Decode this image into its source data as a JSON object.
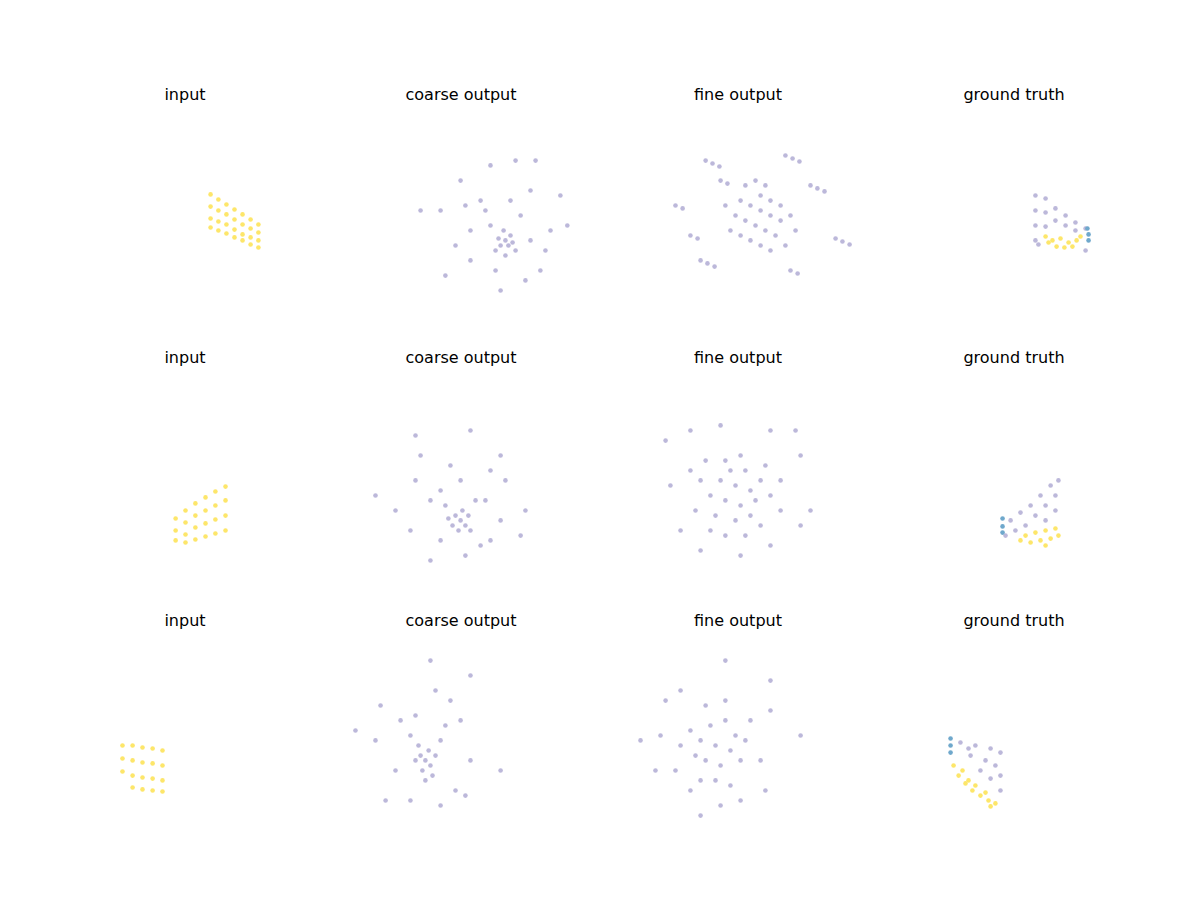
{
  "chart_data": [
    {
      "type": "scatter",
      "title": "input",
      "xlim": [
        0,
        100
      ],
      "ylim": [
        0,
        100
      ],
      "tick_labels": false,
      "series": [
        {
          "color": "#fde66a",
          "x": [
            60.9,
            60.9,
            60.9,
            60.9,
            64.3,
            64.3,
            64.3,
            64.3,
            67.8,
            67.8,
            67.8,
            67.8,
            71.3,
            71.3,
            71.3,
            71.3,
            74.8,
            74.8,
            74.8,
            74.8,
            78.3,
            78.3,
            78.3,
            78.3,
            81.7,
            81.7,
            81.7,
            81.7
          ],
          "values": [
            65.7,
            60.4,
            55.2,
            51.3,
            63.5,
            58.7,
            53.9,
            50.0,
            61.3,
            57.0,
            52.6,
            48.7,
            59.1,
            54.8,
            50.4,
            47.0,
            57.0,
            52.6,
            48.3,
            45.7,
            54.8,
            50.9,
            47.0,
            43.9,
            52.6,
            49.1,
            45.7,
            42.6
          ]
        }
      ]
    },
    {
      "type": "scatter",
      "title": "coarse output",
      "xlim": [
        0,
        100
      ],
      "ylim": [
        0,
        100
      ],
      "tick_labels": false,
      "series": [
        {
          "color": "#bcb8da",
          "x": [
            69.1,
            67.0,
            71.3,
            70.4,
            66.1,
            72.2,
            68.3,
            64.8,
            73.5,
            69.1,
            62.6,
            75.7,
            58.3,
            80.0,
            53.9,
            84.3,
            49.6,
            88.7,
            40.9,
            96.0,
            32.2,
            73.5,
            82.2,
            62.6,
            47.4,
            77.8,
            67.0,
            43.0,
            93.0,
            60.4,
            71.3,
            53.9,
            80.0,
            64.8,
            51.7,
            86.5
          ],
          "values": [
            45.7,
            43.5,
            47.8,
            43.5,
            46.5,
            44.8,
            50.0,
            41.3,
            41.3,
            39.1,
            52.2,
            56.5,
            63.0,
            67.4,
            37.0,
            32.6,
            71.7,
            50.0,
            58.7,
            52.2,
            58.7,
            80.4,
            80.4,
            78.3,
            43.5,
            28.3,
            23.9,
            30.4,
            65.2,
            58.7,
            63.0,
            50.0,
            45.7,
            32.6,
            60.9,
            41.3
          ]
        }
      ]
    },
    {
      "type": "scatter",
      "title": "fine output",
      "xlim": [
        0,
        100
      ],
      "ylim": [
        0,
        100
      ],
      "tick_labels": false,
      "series": [
        {
          "color": "#bcb8da",
          "x": [
            50.9,
            55.2,
            59.6,
            63.9,
            68.3,
            53.0,
            57.4,
            61.7,
            66.1,
            48.7,
            59.6,
            63.9,
            68.3,
            72.6,
            55.2,
            59.6,
            63.9,
            46.5,
            50.9,
            74.8,
            44.3,
            70.4,
            53.0,
            57.4,
            61.7,
            35.7,
            38.7,
            41.7,
            70.4,
            73.5,
            76.5,
            22.6,
            25.7,
            81.3,
            84.3,
            87.4,
            92.2,
            95.2,
            98.3,
            33.5,
            36.5,
            39.6,
            29.1,
            32.2,
            72.6,
            75.7,
            42.2,
            45.2
          ],
          "values": [
            63.0,
            60.9,
            58.7,
            56.5,
            54.3,
            54.3,
            52.2,
            50.0,
            47.8,
            56.5,
            65.2,
            63.0,
            60.9,
            56.5,
            45.7,
            43.5,
            41.3,
            50.0,
            47.8,
            50.0,
            60.9,
            43.5,
            69.6,
            71.7,
            69.6,
            80.4,
            79.1,
            77.8,
            82.6,
            81.3,
            80.0,
            60.9,
            59.6,
            69.6,
            68.3,
            67.0,
            46.5,
            45.2,
            43.9,
            37.0,
            35.7,
            34.3,
            47.8,
            46.5,
            32.6,
            31.3,
            71.7,
            70.4
          ]
        }
      ]
    },
    {
      "type": "scatter",
      "title": "ground truth",
      "xlim": [
        0,
        100
      ],
      "ylim": [
        0,
        100
      ],
      "tick_labels": false,
      "series": [
        {
          "color": "#bcb8da",
          "x": [
            59.1,
            59.1,
            59.1,
            59.1,
            63.5,
            63.5,
            63.5,
            67.8,
            67.8,
            72.2,
            72.2,
            76.5,
            76.5,
            80.9,
            80.9,
            60.4
          ],
          "values": [
            65.2,
            58.7,
            52.2,
            45.7,
            63.9,
            57.8,
            51.7,
            59.6,
            54.3,
            56.5,
            52.2,
            53.5,
            50.0,
            50.9,
            41.3,
            43.9
          ]
        },
        {
          "color": "#fde66a",
          "x": [
            63.5,
            66.5,
            70.0,
            73.5,
            77.0,
            68.3,
            71.7,
            75.2,
            64.8,
            78.7
          ],
          "values": [
            47.4,
            45.7,
            46.5,
            44.8,
            45.7,
            43.0,
            42.6,
            43.0,
            44.8,
            47.4
          ]
        },
        {
          "color": "#6fa8cc",
          "x": [
            81.7,
            82.2,
            82.2
          ],
          "values": [
            50.9,
            48.3,
            45.7
          ]
        }
      ]
    },
    {
      "type": "scatter",
      "title": "input",
      "xlim": [
        0,
        100
      ],
      "ylim": [
        0,
        100
      ],
      "tick_labels": false,
      "series": [
        {
          "color": "#fde66a",
          "x": [
            45.7,
            45.7,
            45.7,
            50.0,
            50.0,
            50.0,
            50.0,
            54.3,
            54.3,
            54.3,
            54.3,
            58.7,
            58.7,
            58.7,
            58.7,
            63.0,
            63.0,
            63.0,
            63.0,
            67.4,
            67.4,
            67.4,
            67.4
          ],
          "values": [
            39.1,
            33.9,
            29.6,
            42.6,
            37.4,
            32.2,
            28.7,
            45.7,
            40.4,
            35.2,
            30.0,
            48.3,
            42.6,
            37.0,
            31.3,
            50.9,
            44.8,
            38.7,
            32.6,
            53.0,
            47.0,
            40.4,
            33.9
          ]
        }
      ]
    },
    {
      "type": "scatter",
      "title": "coarse output",
      "xlim": [
        0,
        100
      ],
      "ylim": [
        0,
        100
      ],
      "tick_labels": false,
      "series": [
        {
          "color": "#bcb8da",
          "x": [
            49.6,
            47.4,
            51.7,
            46.1,
            53.0,
            48.7,
            50.4,
            44.3,
            53.9,
            43.0,
            56.1,
            40.9,
            62.6,
            32.2,
            67.0,
            27.8,
            58.3,
            36.5,
            53.9,
            69.1,
            30.0,
            21.3,
            75.7,
            60.4,
            40.9,
            49.6,
            67.0,
            12.6,
            36.5,
            30.0,
            77.8,
            45.2,
            62.6,
            51.7
          ],
          "values": [
            38.3,
            40.4,
            36.1,
            36.1,
            40.4,
            33.9,
            42.6,
            39.1,
            33.9,
            44.8,
            47.0,
            51.3,
            60.0,
            66.5,
            38.3,
            33.9,
            27.4,
            20.9,
            77.4,
            55.7,
            55.7,
            42.6,
            31.7,
            47.0,
            29.6,
            55.7,
            66.5,
            49.1,
            47.0,
            75.2,
            42.6,
            62.2,
            29.6,
            23.0
          ]
        }
      ]
    },
    {
      "type": "scatter",
      "title": "fine output",
      "xlim": [
        0,
        100
      ],
      "ylim": [
        0,
        100
      ],
      "tick_labels": false,
      "series": [
        {
          "color": "#bcb8da",
          "x": [
            42.2,
            48.7,
            55.2,
            44.3,
            50.9,
            57.4,
            37.8,
            46.5,
            53.0,
            59.6,
            40.0,
            48.7,
            55.2,
            33.5,
            63.9,
            44.3,
            50.9,
            61.7,
            35.7,
            68.3,
            31.3,
            59.6,
            53.0,
            44.3,
            37.8,
            68.3,
            29.1,
            77.0,
            81.3,
            20.4,
            18.3,
            29.1,
            42.2,
            63.9,
            74.8,
            24.8,
            33.5,
            50.9,
            63.9,
            77.0
          ],
          "values": [
            55.7,
            53.5,
            51.3,
            47.0,
            44.8,
            47.0,
            49.1,
            60.0,
            60.0,
            55.7,
            40.4,
            38.3,
            40.4,
            55.7,
            49.1,
            64.3,
            66.5,
            62.2,
            64.3,
            55.7,
            42.6,
            36.1,
            31.7,
            31.7,
            33.9,
            42.6,
            60.0,
            66.5,
            42.6,
            53.5,
            73.0,
            77.4,
            79.6,
            77.4,
            77.4,
            33.9,
            25.2,
            23.0,
            27.4,
            36.1
          ]
        }
      ]
    },
    {
      "type": "scatter",
      "title": "ground truth",
      "xlim": [
        0,
        100
      ],
      "ylim": [
        0,
        100
      ],
      "tick_labels": false,
      "series": [
        {
          "color": "#bcb8da",
          "x": [
            48.3,
            52.6,
            57.0,
            61.3,
            65.7,
            67.8,
            63.5,
            59.1,
            54.8,
            50.4,
            67.8,
            63.5,
            46.1,
            69.1
          ],
          "values": [
            38.3,
            41.7,
            44.8,
            49.1,
            53.5,
            49.1,
            44.8,
            40.4,
            36.1,
            33.9,
            42.6,
            38.3,
            31.7,
            55.7
          ]
        },
        {
          "color": "#fde66a",
          "x": [
            54.8,
            59.1,
            63.5,
            67.8,
            57.0,
            61.3,
            65.7,
            52.6,
            69.1,
            63.5
          ],
          "values": [
            31.7,
            33.0,
            33.9,
            34.8,
            28.7,
            29.6,
            30.4,
            29.6,
            31.7,
            27.4
          ]
        },
        {
          "color": "#6fa8cc",
          "x": [
            44.8,
            44.8,
            44.8
          ],
          "values": [
            39.1,
            35.7,
            33.0
          ]
        }
      ]
    },
    {
      "type": "scatter",
      "title": "input",
      "xlim": [
        0,
        100
      ],
      "ylim": [
        0,
        100
      ],
      "tick_labels": false,
      "series": [
        {
          "color": "#fde66a",
          "x": [
            22.6,
            22.6,
            22.6,
            27.0,
            27.0,
            27.0,
            27.0,
            31.3,
            31.3,
            31.3,
            31.3,
            35.7,
            35.7,
            35.7,
            35.7,
            40.0,
            40.0,
            40.0,
            40.0
          ],
          "values": [
            54.8,
            49.1,
            43.5,
            54.8,
            48.3,
            41.7,
            36.5,
            53.9,
            47.4,
            40.9,
            35.7,
            53.5,
            47.0,
            40.4,
            35.2,
            52.6,
            46.1,
            39.6,
            34.8
          ]
        }
      ]
    },
    {
      "type": "scatter",
      "title": "coarse output",
      "xlim": [
        0,
        100
      ],
      "ylim": [
        0,
        100
      ],
      "tick_labels": false,
      "series": [
        {
          "color": "#bcb8da",
          "x": [
            34.3,
            32.2,
            36.5,
            33.0,
            35.7,
            31.3,
            37.4,
            30.0,
            38.7,
            34.3,
            27.8,
            40.9,
            23.5,
            45.2,
            38.7,
            21.3,
            47.4,
            14.8,
            53.9,
            27.8,
            40.9,
            12.6,
            49.6,
            17.0,
            67.0,
            3.9,
            53.9,
            36.5,
            30.0,
            43.0,
            51.7
          ],
          "values": [
            48.3,
            50.4,
            46.1,
            43.9,
            52.6,
            54.8,
            41.7,
            48.3,
            50.4,
            39.6,
            59.1,
            57.0,
            65.7,
            74.3,
            78.7,
            43.9,
            35.2,
            72.2,
            48.3,
            30.9,
            28.7,
            57.0,
            65.7,
            30.9,
            43.9,
            61.3,
            85.2,
            91.7,
            67.8,
            63.5,
            33.0
          ]
        }
      ]
    },
    {
      "type": "scatter",
      "title": "fine output",
      "xlim": [
        0,
        100
      ],
      "ylim": [
        0,
        100
      ],
      "tick_labels": false,
      "series": [
        {
          "color": "#bcb8da",
          "x": [
            33.5,
            40.0,
            46.5,
            35.7,
            42.2,
            48.7,
            37.8,
            44.3,
            31.3,
            50.9,
            40.0,
            33.5,
            46.5,
            29.1,
            53.0,
            35.7,
            44.3,
            24.8,
            55.2,
            59.6,
            29.1,
            42.2,
            50.9,
            22.6,
            16.1,
            7.4,
            18.3,
            63.9,
            77.0,
            63.9,
            44.3,
            24.8,
            33.5,
            61.7,
            13.9
          ],
          "values": [
            57.0,
            54.8,
            52.6,
            48.3,
            46.1,
            59.1,
            63.5,
            65.7,
            50.4,
            48.3,
            39.6,
            39.6,
            37.4,
            61.3,
            57.0,
            72.2,
            74.3,
            54.8,
            65.7,
            48.3,
            35.2,
            28.7,
            30.9,
            43.9,
            59.1,
            57.0,
            74.3,
            70.0,
            59.1,
            83.0,
            91.7,
            78.7,
            24.3,
            35.2,
            43.9
          ]
        }
      ]
    },
    {
      "type": "scatter",
      "title": "ground truth",
      "xlim": [
        0,
        100
      ],
      "ylim": [
        0,
        100
      ],
      "tick_labels": false,
      "series": [
        {
          "color": "#bcb8da",
          "x": [
            26.5,
            33.0,
            39.6,
            43.9,
            41.7,
            37.4,
            30.9,
            43.9,
            39.6,
            35.2,
            43.9,
            30.0
          ],
          "values": [
            56.1,
            54.8,
            53.5,
            51.7,
            46.1,
            48.3,
            50.4,
            41.7,
            40.4,
            43.9,
            35.2,
            53.5
          ]
        },
        {
          "color": "#fde66a",
          "x": [
            23.5,
            25.7,
            28.7,
            31.7,
            35.2,
            38.7,
            41.7,
            27.4,
            33.0,
            37.4,
            39.6,
            30.0
          ],
          "values": [
            46.1,
            41.7,
            38.3,
            35.2,
            33.0,
            30.9,
            29.6,
            43.9,
            37.4,
            34.3,
            28.3,
            39.6
          ]
        },
        {
          "color": "#6fa8cc",
          "x": [
            22.2,
            22.2,
            22.2
          ],
          "values": [
            57.8,
            54.8,
            51.7
          ]
        }
      ]
    }
  ]
}
